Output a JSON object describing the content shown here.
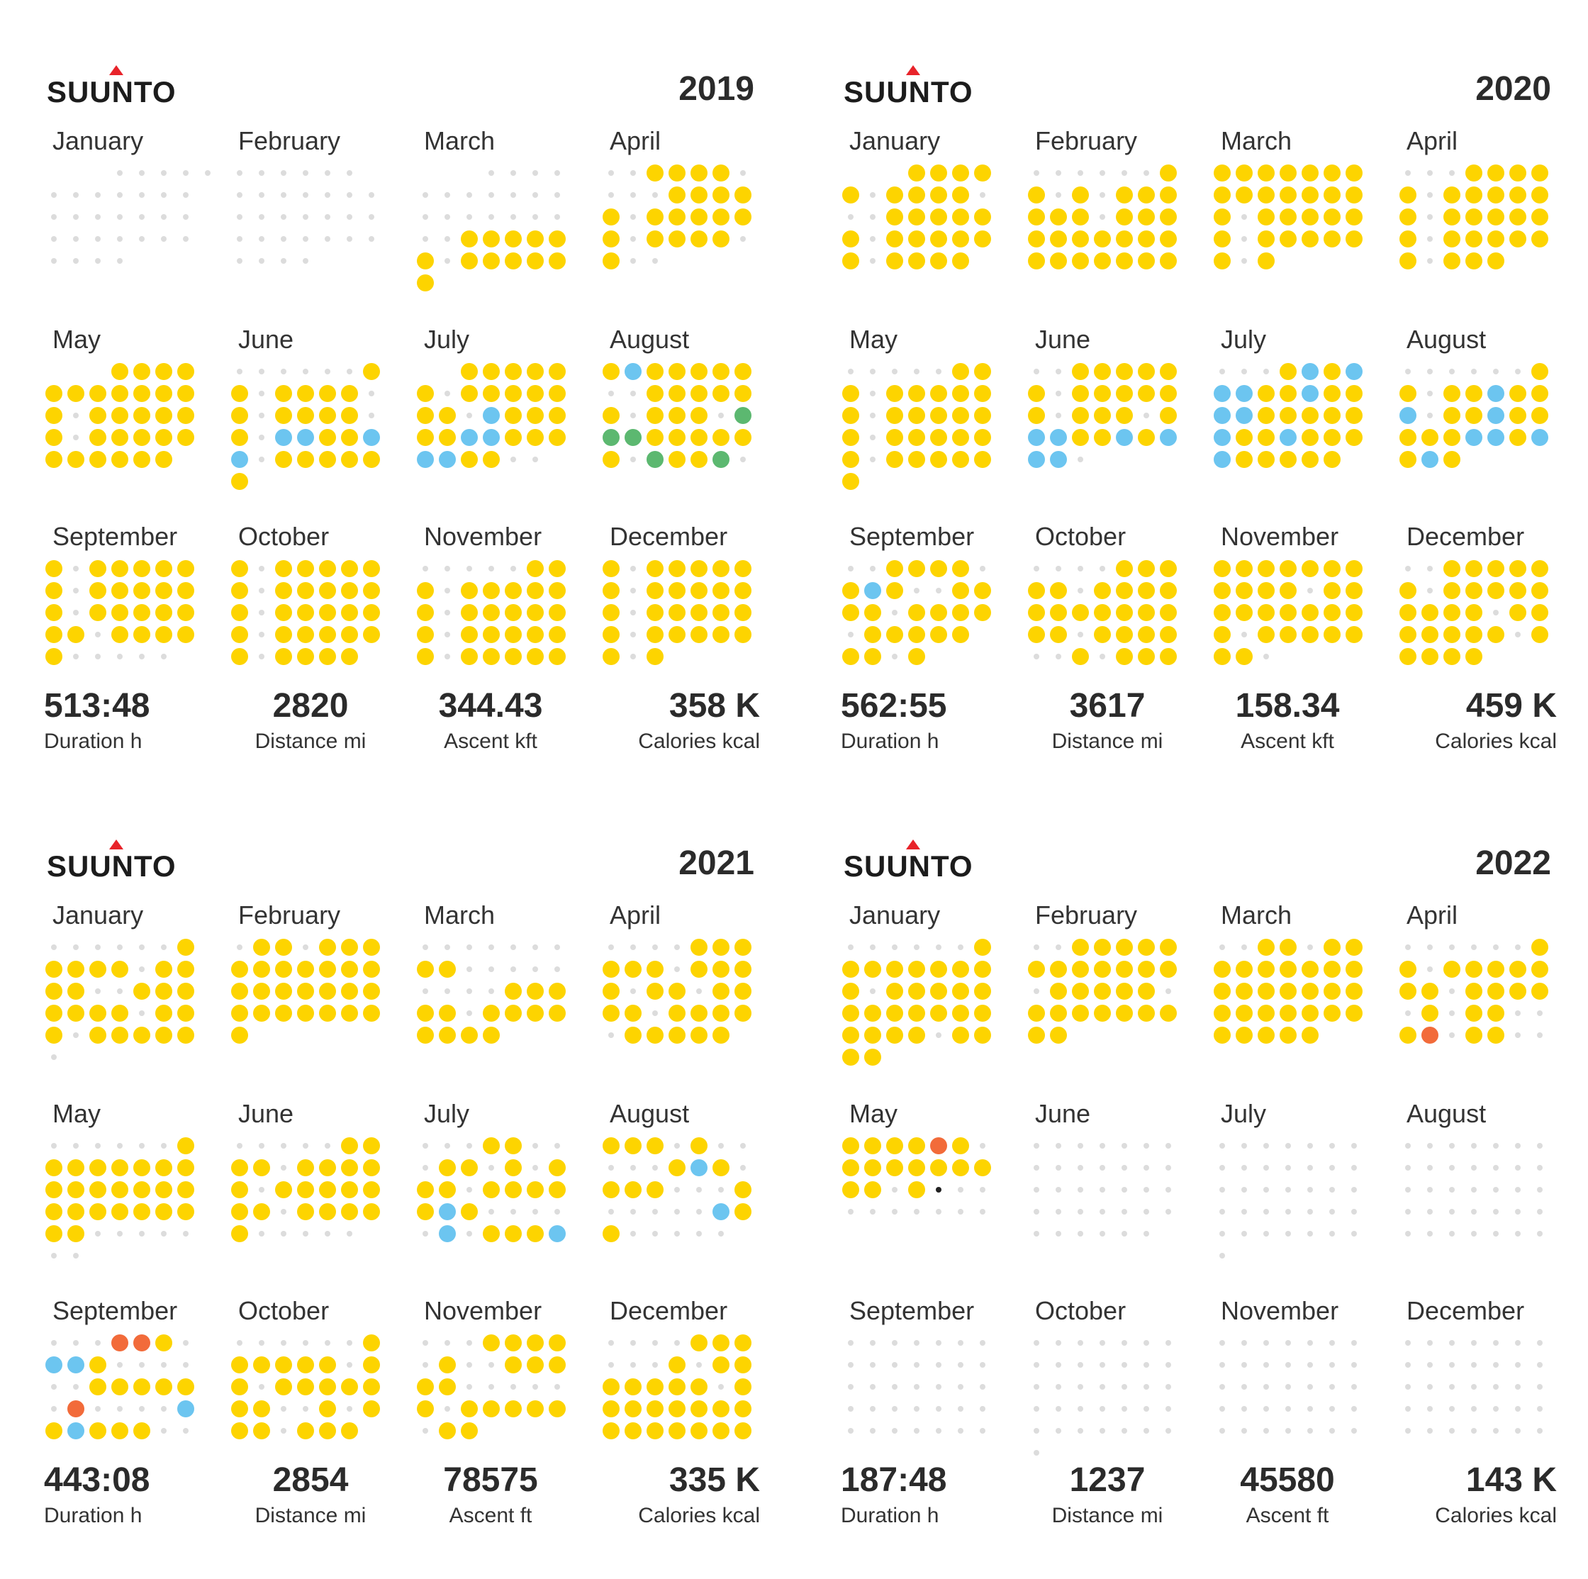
{
  "brand": "SUUNTO",
  "colors": {
    "yellow": "#fdd400",
    "blue": "#6cc5f0",
    "green": "#5cb870",
    "orange": "#f26b3a",
    "empty": "#dcdcdc",
    "logo_mark": "#e8232a"
  },
  "panels": [
    {
      "year": "2019",
      "months": [
        "January",
        "February",
        "March",
        "April",
        "May",
        "June",
        "July",
        "August",
        "September",
        "October",
        "November",
        "December"
      ],
      "month_grids": [
        [
          "...eeeee",
          "eeeeeee",
          "eeeeeee",
          "eeeeeee",
          "eeee..."
        ],
        [
          "eeeeee.",
          "eeeeeee",
          "eeeeeee",
          "eeeeeee",
          "eeee..."
        ],
        [
          "...eeee",
          "eeeeeee",
          "eeeeeee",
          "eeyyyyy",
          "yeyyyyy",
          "y......"
        ],
        [
          "eeyyyye",
          "eeeyyyy",
          "yeyyyyy",
          "yeyyyye",
          "yee...."
        ],
        [
          "...yyyy",
          "yyyyyyy",
          "yeyyyyy",
          "yeyyyyy",
          "yyyyyy."
        ],
        [
          "eeeeeey",
          "yeyyyye",
          "yeyyyye",
          "yebbyyb",
          "beyyyyy",
          "y......"
        ],
        [
          "..yyyyy",
          "yeyyyyy",
          "yyebyyy",
          "yybbyyy",
          "bbyyee."
        ],
        [
          "ybyyyyy",
          "eeyyyyy",
          "yeyyyeg",
          "ggyyyyy",
          "yegyyge"
        ],
        [
          "yeyyyyy",
          "yeyyyyy",
          "yeyyyyy",
          "yyeyyyy",
          "yeeeee."
        ],
        [
          "yeyyyyy",
          "yeyyyyy",
          "yeyyyyy",
          "yeyyyyy",
          "yeyyyy."
        ],
        [
          "eeeeeyy",
          "yeyyyyy",
          "yeyyyyy",
          "yeyyyyy",
          "yeyyyyy"
        ],
        [
          "yeyyyyy",
          "yeyyyyy",
          "yeyyyyy",
          "yeyyyyy",
          "yey...."
        ]
      ],
      "stats": [
        {
          "value": "513:48",
          "label": "Duration h"
        },
        {
          "value": "2820",
          "label": "Distance mi"
        },
        {
          "value": "344.43",
          "label": "Ascent kft"
        },
        {
          "value": "358 K",
          "label": "Calories kcal"
        }
      ]
    },
    {
      "year": "2020",
      "months": [
        "January",
        "February",
        "March",
        "April",
        "May",
        "June",
        "July",
        "August",
        "September",
        "October",
        "November",
        "December"
      ],
      "month_grids": [
        [
          "...yyyy",
          "yeyyyye",
          "eeyyyyy",
          "yeyyyyy",
          "yeyyyy."
        ],
        [
          "eeeeeey",
          "yeyeyyy",
          "yyyeyyy",
          "yyyyyyy",
          "yyyyyyy"
        ],
        [
          "yyyyyyy",
          "yyyyyyy",
          "yeyyyyy",
          "yeyyyyy",
          "yey...."
        ],
        [
          "eeeyyyy",
          "yeyyyyy",
          "yeyyyyy",
          "yeyyyyy",
          "yeyyy.."
        ],
        [
          "eeeeeyy",
          "yeyyyyy",
          "yeyyyyy",
          "yeyyyyy",
          "yeyyyyy",
          "y......"
        ],
        [
          "eeyyyyy",
          "yeyyyyy",
          "yeyyyey",
          "bbyybyb",
          "bbe...."
        ],
        [
          "eeeybyb",
          "bbyybyy",
          "bbyyyyy",
          "byybyyy",
          "byyyyy."
        ],
        [
          "eeeeeey",
          "yeyybyy",
          "beyybyy",
          "yyybbyb",
          "yby...."
        ],
        [
          "eeyyyye",
          "ybyeeyy",
          "yyeyyyy",
          "eyyyyy.",
          "yyey..."
        ],
        [
          "eeeeyyy",
          "yyeyyyy",
          "yyyyyyy",
          "yyeyyyy",
          "eeyeyyy"
        ],
        [
          "yyyyyyy",
          "yyyyeyy",
          "yyyyyyy",
          "yeyyyyy",
          "yye...."
        ],
        [
          "eeyyyyy",
          "yeyyyyy",
          "yyyyeyy",
          "yyyyyey",
          "yyyy..."
        ]
      ],
      "stats": [
        {
          "value": "562:55",
          "label": "Duration h"
        },
        {
          "value": "3617",
          "label": "Distance mi"
        },
        {
          "value": "158.34",
          "label": "Ascent kft"
        },
        {
          "value": "459 K",
          "label": "Calories kcal"
        }
      ]
    },
    {
      "year": "2021",
      "months": [
        "January",
        "February",
        "March",
        "April",
        "May",
        "June",
        "July",
        "August",
        "September",
        "October",
        "November",
        "December"
      ],
      "month_grids": [
        [
          "eeeeeey",
          "yyyyeyy",
          "yyeeyyy",
          "yyyyeyy",
          "yeyyyyy",
          "e......"
        ],
        [
          "eyyeyyy",
          "yyyyyyy",
          "yyyyyyy",
          "yyyyyyy",
          "y......"
        ],
        [
          "eeeeeee",
          "yyeeeee",
          "eeeeyyy",
          "yyeyyyy",
          "yyyy..."
        ],
        [
          "eeeeyyy",
          "yyyeyyy",
          "yeyyeyy",
          "yyeyyyy",
          "eyyyyy."
        ],
        [
          "eeeeeey",
          "yyyyyyy",
          "yyyyyyy",
          "yyyyyyy",
          "yyeeeee",
          "ee....."
        ],
        [
          "eeeeeyy",
          "yyeyyyy",
          "yeyyyyy",
          "yyeyyyy",
          "yeeeee."
        ],
        [
          "eeeyyee",
          "eyyeyey",
          "yyeyyyy",
          "ybyeeee",
          "ebeyyyb"
        ],
        [
          "yyyeyee",
          "eeeybye",
          "yyyeeey",
          "eeeeeby",
          "yeeeee."
        ],
        [
          "eeeoone",
          "bbyeeee",
          "eeyyyyy",
          "eoeeeeb",
          "ybyyyee"
        ],
        [
          "eeeeeey",
          "yyyyyey",
          "yeyyyyy",
          "yyeeyey",
          "yyeyyy."
        ],
        [
          "eeeyyyy",
          "eyeeyyy",
          "yyeeeee",
          "yeyyyyy",
          "eyy...."
        ],
        [
          "eeeeyyy",
          "eeeyeyy",
          "yyyyyey",
          "yyyyyyy",
          "yyyyyyy"
        ]
      ],
      "stats": [
        {
          "value": "443:08",
          "label": "Duration h"
        },
        {
          "value": "2854",
          "label": "Distance mi"
        },
        {
          "value": "78575",
          "label": "Ascent ft"
        },
        {
          "value": "335 K",
          "label": "Calories kcal"
        }
      ]
    },
    {
      "year": "2022",
      "months": [
        "January",
        "February",
        "March",
        "April",
        "May",
        "June",
        "July",
        "August",
        "September",
        "October",
        "November",
        "December"
      ],
      "month_grids": [
        [
          "eeeeeey",
          "yyyyyyy",
          "yeyyyyy",
          "yyyyyyy",
          "yyyyeyy",
          "yy....."
        ],
        [
          "eeyyyyy",
          "yyyyyyy",
          "eyyyyye",
          "yyyyyyy",
          "yy....."
        ],
        [
          "eeyyeyy",
          "yyyyyyy",
          "yyyyyyy",
          "yyyyyyy",
          "yyyyy.."
        ],
        [
          "eeeeeey",
          "yeyyyyy",
          "yyeyyyy",
          "eyeyyee",
          "yoeyyee"
        ],
        [
          "yyyyoye",
          "yyyyyyy",
          "yyeyxee",
          "eeeeeee"
        ],
        [
          "eeeeeee",
          "eeeeeee",
          "eeeeeee",
          "eeeeeee",
          "eeeeee."
        ],
        [
          "eeeeeee",
          "eeeeeee",
          "eeeeeee",
          "eeeeeee",
          "eeeeeee",
          "e......"
        ],
        [
          "eeeeeee",
          "eeeeeee",
          "eeeeeee",
          "eeeeeee",
          "eeeeeee"
        ],
        [
          "eeeeeee",
          "eeeeeee",
          "eeeeeee",
          "eeeeeee",
          "eeeeeee"
        ],
        [
          "eeeeeee",
          "eeeeeee",
          "eeeeeee",
          "eeeeeee",
          "eeeeeee",
          "e......"
        ],
        [
          "eeeeeee",
          "eeeeeee",
          "eeeeeee",
          "eeeeeee",
          "eeeeeee"
        ],
        [
          "eeeeeee",
          "eeeeeee",
          "eeeeeee",
          "eeeeeee",
          "eeeeeee"
        ]
      ],
      "stats": [
        {
          "value": "187:48",
          "label": "Duration h"
        },
        {
          "value": "1237",
          "label": "Distance mi"
        },
        {
          "value": "45580",
          "label": "Ascent ft"
        },
        {
          "value": "143 K",
          "label": "Calories kcal"
        }
      ]
    }
  ]
}
